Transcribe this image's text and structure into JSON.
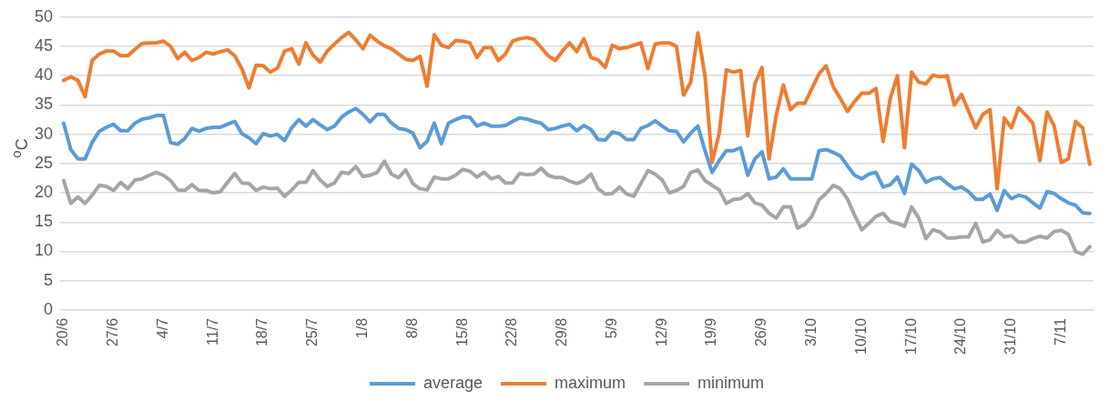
{
  "chart_data": {
    "type": "line",
    "ylabel": "$^{o}$C",
    "categories": [
      "20/6",
      null,
      null,
      null,
      null,
      null,
      null,
      "27/6",
      null,
      null,
      null,
      null,
      null,
      null,
      "4/7",
      null,
      null,
      null,
      null,
      null,
      null,
      "11/7",
      null,
      null,
      null,
      null,
      null,
      null,
      "18/7",
      null,
      null,
      null,
      null,
      null,
      null,
      "25/7",
      null,
      null,
      null,
      null,
      null,
      null,
      "1/8",
      null,
      null,
      null,
      null,
      null,
      null,
      "8/8",
      null,
      null,
      null,
      null,
      null,
      null,
      "15/8",
      null,
      null,
      null,
      null,
      null,
      null,
      "22/8",
      null,
      null,
      null,
      null,
      null,
      null,
      "29/8",
      null,
      null,
      null,
      null,
      null,
      null,
      "5/9",
      null,
      null,
      null,
      null,
      null,
      null,
      "12/9",
      null,
      null,
      null,
      null,
      null,
      null,
      "19/9",
      null,
      null,
      null,
      null,
      null,
      null,
      "26/9",
      null,
      null,
      null,
      null,
      null,
      null,
      "3/10",
      null,
      null,
      null,
      null,
      null,
      null,
      "10/10",
      null,
      null,
      null,
      null,
      null,
      null,
      "17/10",
      null,
      null,
      null,
      null,
      null,
      null,
      "24/10",
      null,
      null,
      null,
      null,
      null,
      null,
      "31/10",
      null,
      null,
      null,
      null,
      null,
      null,
      "7/11",
      null,
      null,
      null,
      null
    ],
    "series": [
      {
        "name": "average",
        "color": "#5b9bd5",
        "values": [
          31.9,
          27.4,
          25.8,
          25.8,
          28.6,
          30.5,
          31.2,
          31.7,
          30.6,
          30.6,
          31.9,
          32.6,
          32.8,
          33.2,
          33.2,
          28.6,
          28.3,
          29.3,
          31.0,
          30.5,
          31.0,
          31.2,
          31.2,
          31.7,
          32.2,
          30.1,
          29.4,
          28.4,
          30.1,
          29.7,
          30.0,
          28.9,
          31.1,
          32.5,
          31.4,
          32.5,
          31.6,
          30.8,
          31.4,
          32.9,
          33.8,
          34.4,
          33.4,
          32.1,
          33.4,
          33.4,
          31.9,
          31.0,
          30.8,
          30.2,
          27.7,
          28.8,
          31.9,
          28.4,
          31.9,
          32.5,
          33.0,
          32.9,
          31.4,
          31.9,
          31.4,
          31.4,
          31.5,
          32.2,
          32.8,
          32.6,
          32.2,
          31.9,
          30.8,
          31.0,
          31.4,
          31.7,
          30.6,
          31.5,
          30.8,
          29.1,
          29.0,
          30.4,
          30.1,
          29.1,
          29.1,
          31.0,
          31.5,
          32.3,
          31.4,
          30.6,
          30.5,
          28.7,
          30.2,
          31.4,
          27.2,
          23.5,
          25.5,
          27.2,
          27.2,
          27.7,
          23.0,
          25.8,
          27.0,
          22.4,
          22.7,
          24.1,
          22.4,
          22.4,
          22.4,
          22.4,
          27.2,
          27.4,
          26.9,
          26.3,
          24.6,
          23.0,
          22.4,
          23.2,
          23.5,
          21.0,
          21.4,
          22.7,
          19.9,
          24.9,
          23.8,
          21.8,
          22.4,
          22.6,
          21.6,
          20.7,
          21.0,
          20.2,
          18.9,
          18.9,
          19.8,
          17.0,
          20.4,
          19.0,
          19.6,
          19.3,
          18.3,
          17.4,
          20.2,
          19.9,
          19.0,
          18.3,
          17.9,
          16.6,
          16.5
        ]
      },
      {
        "name": "maximum",
        "color": "#ed7d31",
        "values": [
          39.2,
          39.8,
          39.2,
          36.4,
          42.6,
          43.7,
          44.2,
          44.2,
          43.4,
          43.4,
          44.5,
          45.5,
          45.6,
          45.6,
          45.9,
          45.0,
          42.9,
          44.0,
          42.6,
          43.1,
          44.0,
          43.7,
          44.1,
          44.4,
          43.4,
          41.2,
          37.9,
          41.8,
          41.7,
          40.6,
          41.3,
          44.2,
          44.6,
          42.0,
          45.6,
          43.5,
          42.3,
          44.2,
          45.4,
          46.5,
          47.4,
          46.1,
          44.6,
          46.9,
          45.9,
          45.1,
          44.6,
          43.7,
          42.8,
          42.6,
          43.3,
          38.2,
          47.0,
          45.2,
          44.8,
          46.0,
          45.9,
          45.6,
          43.1,
          44.8,
          44.8,
          42.6,
          43.7,
          45.9,
          46.3,
          46.5,
          46.2,
          44.8,
          43.4,
          42.6,
          44.2,
          45.6,
          44.1,
          46.3,
          43.1,
          42.7,
          41.4,
          45.2,
          44.6,
          44.8,
          45.2,
          45.6,
          41.2,
          45.4,
          45.6,
          45.6,
          45.0,
          36.7,
          38.9,
          47.3,
          40.0,
          25.2,
          30.2,
          41.0,
          40.6,
          40.9,
          29.7,
          38.6,
          41.4,
          25.8,
          33.3,
          38.4,
          34.2,
          35.3,
          35.3,
          37.8,
          40.3,
          41.7,
          38.1,
          36.1,
          33.9,
          35.6,
          37.0,
          37.0,
          37.8,
          28.8,
          36.1,
          40.0,
          27.7,
          40.6,
          38.9,
          38.6,
          40.1,
          39.8,
          40.0,
          35.0,
          36.8,
          33.9,
          31.1,
          33.4,
          34.2,
          20.7,
          32.8,
          31.1,
          34.5,
          33.3,
          31.9,
          25.5,
          33.8,
          31.4,
          25.2,
          25.8,
          32.2,
          31.1,
          24.9
        ]
      },
      {
        "name": "minimum",
        "color": "#a5a5a5",
        "values": [
          22.1,
          18.2,
          19.3,
          18.2,
          19.6,
          21.3,
          21.1,
          20.4,
          21.8,
          20.7,
          22.2,
          22.4,
          23.0,
          23.5,
          23.0,
          22.1,
          20.5,
          20.4,
          21.4,
          20.4,
          20.4,
          20.0,
          20.2,
          21.8,
          23.3,
          21.7,
          21.6,
          20.4,
          21.0,
          20.7,
          20.8,
          19.4,
          20.5,
          21.8,
          21.8,
          23.8,
          22.2,
          21.1,
          21.7,
          23.5,
          23.3,
          24.5,
          22.8,
          23.0,
          23.5,
          25.4,
          23.2,
          22.6,
          23.9,
          21.6,
          20.7,
          20.5,
          22.7,
          22.4,
          22.4,
          23.0,
          24.0,
          23.7,
          22.7,
          23.5,
          22.4,
          22.8,
          21.7,
          21.7,
          23.3,
          23.1,
          23.2,
          24.2,
          23.0,
          22.6,
          22.6,
          22.0,
          21.6,
          22.1,
          23.2,
          20.7,
          19.8,
          19.9,
          21.0,
          19.8,
          19.4,
          21.6,
          23.8,
          23.2,
          22.2,
          20.0,
          20.4,
          21.1,
          23.5,
          23.9,
          22.1,
          21.3,
          20.5,
          18.2,
          18.9,
          19.0,
          19.9,
          18.3,
          17.9,
          16.5,
          15.7,
          17.6,
          17.6,
          14.0,
          14.6,
          16.0,
          18.8,
          19.9,
          21.3,
          20.7,
          18.9,
          16.2,
          13.7,
          14.8,
          16.0,
          16.5,
          15.1,
          14.8,
          14.3,
          17.6,
          15.7,
          12.2,
          13.7,
          13.3,
          12.3,
          12.3,
          12.5,
          12.5,
          14.8,
          11.6,
          12.0,
          13.6,
          12.5,
          12.7,
          11.6,
          11.6,
          12.2,
          12.6,
          12.3,
          13.4,
          13.6,
          12.9,
          10.0,
          9.5,
          10.8
        ]
      }
    ],
    "ylim": [
      0,
      50
    ],
    "yticks": [
      0,
      5,
      10,
      15,
      20,
      25,
      30,
      35,
      40,
      45,
      50
    ],
    "grid": "y",
    "legend": "bottom",
    "marker": "none",
    "line_style": "solid"
  }
}
